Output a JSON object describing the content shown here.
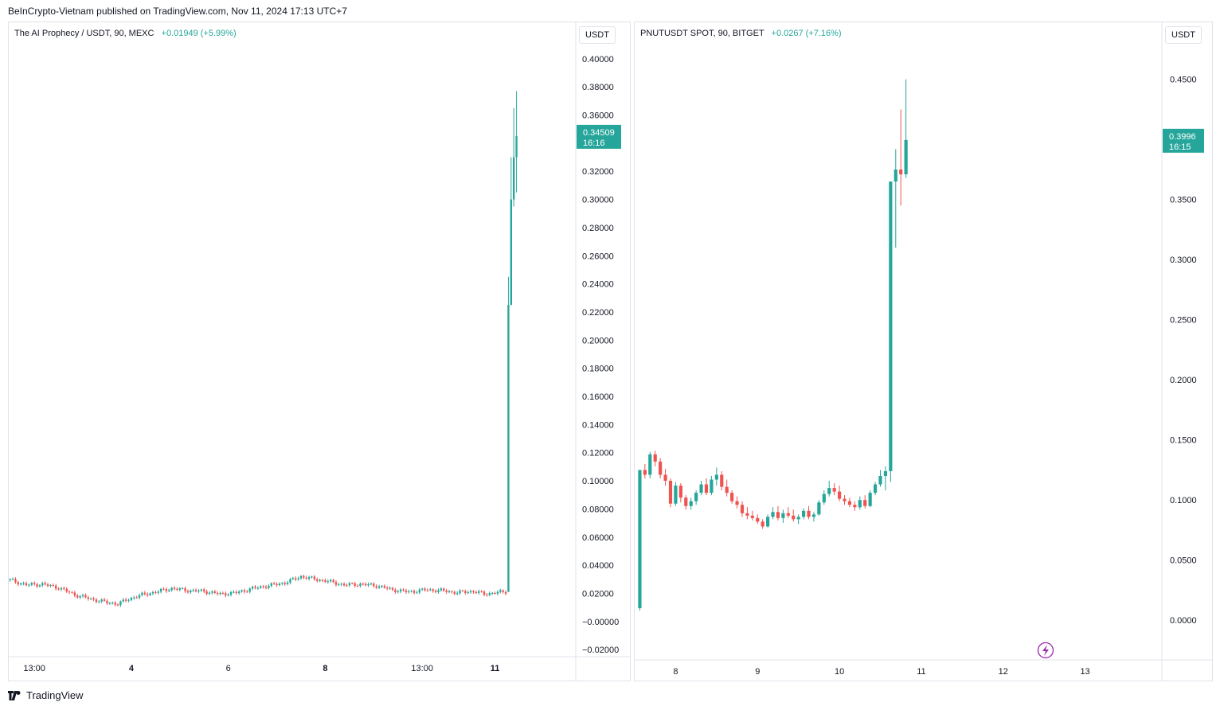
{
  "header": {
    "published": "BeInCrypto-Vietnam published on TradingView.com, Nov 11, 2024 17:13 UTC+7"
  },
  "footer": {
    "brand": "TradingView",
    "icon": "tradingview-logo-icon"
  },
  "colors": {
    "up": "#26a69a",
    "down": "#ef5350",
    "axis_text": "#131722",
    "border": "#e0e3eb"
  },
  "chart_data": [
    {
      "type": "candlestick",
      "symbol": "The AI Prophecy / USDT, 90, MEXC",
      "change": "+0.01949 (+5.99%)",
      "unit": "USDT",
      "ylim": [
        -0.025,
        0.405
      ],
      "y_ticks": [
        "0.40000",
        "0.38000",
        "0.36000",
        "0.32000",
        "0.30000",
        "0.28000",
        "0.26000",
        "0.24000",
        "0.22000",
        "0.20000",
        "0.18000",
        "0.16000",
        "0.14000",
        "0.12000",
        "0.10000",
        "0.08000",
        "0.06000",
        "0.04000",
        "0.02000",
        "−0.00000",
        "−0.02000"
      ],
      "y_tick_values": [
        0.4,
        0.38,
        0.36,
        0.32,
        0.3,
        0.28,
        0.26,
        0.24,
        0.22,
        0.2,
        0.18,
        0.16,
        0.14,
        0.12,
        0.1,
        0.08,
        0.06,
        0.04,
        0.02,
        0.0,
        -0.02
      ],
      "x_ticks": [
        "13:00",
        "4",
        "6",
        "8",
        "13:00",
        "11"
      ],
      "x_tick_index": [
        9,
        45,
        81,
        117,
        153,
        180
      ],
      "x_bold": [
        "4",
        "8",
        "11"
      ],
      "last_price": {
        "price": "0.34509",
        "countdown": "16:16",
        "value": 0.34509
      },
      "anchors": [
        [
          0,
          0.0295
        ],
        [
          6,
          0.026
        ],
        [
          12,
          0.0265
        ],
        [
          18,
          0.024
        ],
        [
          24,
          0.019
        ],
        [
          30,
          0.016
        ],
        [
          36,
          0.0135
        ],
        [
          40,
          0.0125
        ],
        [
          44,
          0.016
        ],
        [
          48,
          0.0185
        ],
        [
          54,
          0.021
        ],
        [
          60,
          0.0235
        ],
        [
          66,
          0.022
        ],
        [
          72,
          0.0215
        ],
        [
          78,
          0.0195
        ],
        [
          84,
          0.0205
        ],
        [
          90,
          0.0235
        ],
        [
          96,
          0.0255
        ],
        [
          102,
          0.0275
        ],
        [
          108,
          0.032
        ],
        [
          112,
          0.0305
        ],
        [
          118,
          0.0285
        ],
        [
          124,
          0.026
        ],
        [
          130,
          0.0265
        ],
        [
          136,
          0.0255
        ],
        [
          142,
          0.0225
        ],
        [
          148,
          0.021
        ],
        [
          154,
          0.0225
        ],
        [
          160,
          0.022
        ],
        [
          166,
          0.0205
        ],
        [
          172,
          0.0215
        ],
        [
          176,
          0.0195
        ],
        [
          180,
          0.0205
        ],
        [
          184,
          0.021
        ]
      ],
      "candle_count": 185,
      "spike": [
        {
          "o": 0.021,
          "h": 0.245,
          "l": 0.205,
          "c": 0.225
        },
        {
          "o": 0.225,
          "h": 0.33,
          "l": 0.28,
          "c": 0.3
        },
        {
          "o": 0.3,
          "h": 0.365,
          "l": 0.295,
          "c": 0.33
        },
        {
          "o": 0.33,
          "h": 0.377,
          "l": 0.305,
          "c": 0.345
        }
      ],
      "x_range": [
        -0.5,
        210
      ]
    },
    {
      "type": "candlestick",
      "symbol": "PNUTUSDT SPOT, 90, BITGET",
      "change": "+0.0267 (+7.16%)",
      "unit": "USDT",
      "ylim": [
        -0.033,
        0.473
      ],
      "y_ticks": [
        "0.4500",
        "0.3500",
        "0.3000",
        "0.2500",
        "0.2000",
        "0.1500",
        "0.1000",
        "0.0500",
        "0.0000"
      ],
      "y_tick_values": [
        0.45,
        0.35,
        0.3,
        0.25,
        0.2,
        0.15,
        0.1,
        0.05,
        0.0
      ],
      "x_ticks": [
        "8",
        "9",
        "10",
        "11",
        "12",
        "13"
      ],
      "x_tick_index": [
        7,
        23,
        39,
        55,
        71,
        87
      ],
      "last_price": {
        "price": "0.3996",
        "countdown": "16:15",
        "value": 0.3996
      },
      "candles": [
        {
          "o": 0.01,
          "h": 0.125,
          "l": 0.008,
          "c": 0.125
        },
        {
          "o": 0.125,
          "h": 0.13,
          "l": 0.118,
          "c": 0.121
        },
        {
          "o": 0.121,
          "h": 0.14,
          "l": 0.118,
          "c": 0.138
        },
        {
          "o": 0.138,
          "h": 0.141,
          "l": 0.128,
          "c": 0.132
        },
        {
          "o": 0.132,
          "h": 0.135,
          "l": 0.118,
          "c": 0.121
        },
        {
          "o": 0.121,
          "h": 0.126,
          "l": 0.112,
          "c": 0.116
        },
        {
          "o": 0.116,
          "h": 0.118,
          "l": 0.094,
          "c": 0.097
        },
        {
          "o": 0.097,
          "h": 0.115,
          "l": 0.095,
          "c": 0.112
        },
        {
          "o": 0.112,
          "h": 0.114,
          "l": 0.098,
          "c": 0.102
        },
        {
          "o": 0.102,
          "h": 0.104,
          "l": 0.092,
          "c": 0.095
        },
        {
          "o": 0.095,
          "h": 0.102,
          "l": 0.092,
          "c": 0.099
        },
        {
          "o": 0.099,
          "h": 0.108,
          "l": 0.096,
          "c": 0.106
        },
        {
          "o": 0.106,
          "h": 0.116,
          "l": 0.104,
          "c": 0.113
        },
        {
          "o": 0.113,
          "h": 0.118,
          "l": 0.104,
          "c": 0.106
        },
        {
          "o": 0.106,
          "h": 0.12,
          "l": 0.104,
          "c": 0.117
        },
        {
          "o": 0.117,
          "h": 0.127,
          "l": 0.112,
          "c": 0.121
        },
        {
          "o": 0.121,
          "h": 0.124,
          "l": 0.108,
          "c": 0.111
        },
        {
          "o": 0.111,
          "h": 0.117,
          "l": 0.103,
          "c": 0.106
        },
        {
          "o": 0.106,
          "h": 0.108,
          "l": 0.097,
          "c": 0.099
        },
        {
          "o": 0.099,
          "h": 0.103,
          "l": 0.093,
          "c": 0.096
        },
        {
          "o": 0.096,
          "h": 0.099,
          "l": 0.086,
          "c": 0.089
        },
        {
          "o": 0.089,
          "h": 0.094,
          "l": 0.084,
          "c": 0.087
        },
        {
          "o": 0.087,
          "h": 0.091,
          "l": 0.083,
          "c": 0.085
        },
        {
          "o": 0.085,
          "h": 0.088,
          "l": 0.08,
          "c": 0.082
        },
        {
          "o": 0.082,
          "h": 0.084,
          "l": 0.076,
          "c": 0.078
        },
        {
          "o": 0.078,
          "h": 0.088,
          "l": 0.077,
          "c": 0.086
        },
        {
          "o": 0.086,
          "h": 0.094,
          "l": 0.084,
          "c": 0.09
        },
        {
          "o": 0.09,
          "h": 0.095,
          "l": 0.083,
          "c": 0.085
        },
        {
          "o": 0.085,
          "h": 0.092,
          "l": 0.081,
          "c": 0.089
        },
        {
          "o": 0.089,
          "h": 0.094,
          "l": 0.085,
          "c": 0.087
        },
        {
          "o": 0.087,
          "h": 0.092,
          "l": 0.082,
          "c": 0.084
        },
        {
          "o": 0.084,
          "h": 0.088,
          "l": 0.08,
          "c": 0.086
        },
        {
          "o": 0.086,
          "h": 0.093,
          "l": 0.084,
          "c": 0.091
        },
        {
          "o": 0.091,
          "h": 0.095,
          "l": 0.084,
          "c": 0.086
        },
        {
          "o": 0.086,
          "h": 0.09,
          "l": 0.082,
          "c": 0.088
        },
        {
          "o": 0.088,
          "h": 0.1,
          "l": 0.087,
          "c": 0.098
        },
        {
          "o": 0.098,
          "h": 0.108,
          "l": 0.096,
          "c": 0.105
        },
        {
          "o": 0.105,
          "h": 0.116,
          "l": 0.103,
          "c": 0.11
        },
        {
          "o": 0.11,
          "h": 0.114,
          "l": 0.104,
          "c": 0.107
        },
        {
          "o": 0.107,
          "h": 0.112,
          "l": 0.099,
          "c": 0.101
        },
        {
          "o": 0.101,
          "h": 0.104,
          "l": 0.096,
          "c": 0.099
        },
        {
          "o": 0.099,
          "h": 0.102,
          "l": 0.094,
          "c": 0.096
        },
        {
          "o": 0.096,
          "h": 0.099,
          "l": 0.091,
          "c": 0.094
        },
        {
          "o": 0.094,
          "h": 0.103,
          "l": 0.092,
          "c": 0.1
        },
        {
          "o": 0.1,
          "h": 0.104,
          "l": 0.093,
          "c": 0.095
        },
        {
          "o": 0.095,
          "h": 0.108,
          "l": 0.094,
          "c": 0.106
        },
        {
          "o": 0.106,
          "h": 0.115,
          "l": 0.104,
          "c": 0.113
        },
        {
          "o": 0.113,
          "h": 0.125,
          "l": 0.111,
          "c": 0.12
        },
        {
          "o": 0.12,
          "h": 0.128,
          "l": 0.108,
          "c": 0.124
        },
        {
          "o": 0.124,
          "h": 0.365,
          "l": 0.115,
          "c": 0.365
        },
        {
          "o": 0.365,
          "h": 0.392,
          "l": 0.31,
          "c": 0.375
        },
        {
          "o": 0.375,
          "h": 0.425,
          "l": 0.345,
          "c": 0.371
        },
        {
          "o": 0.371,
          "h": 0.45,
          "l": 0.368,
          "c": 0.3996
        }
      ],
      "x_range": [
        -1,
        102
      ]
    }
  ]
}
